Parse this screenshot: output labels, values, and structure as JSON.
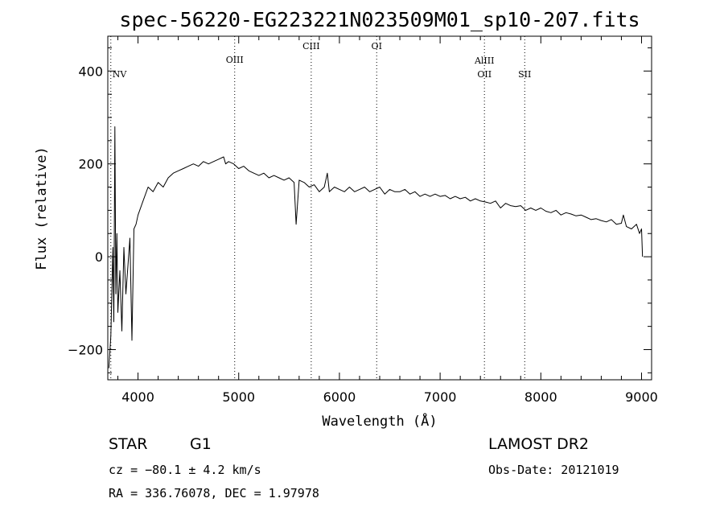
{
  "chart_data": {
    "type": "line",
    "title": "spec-56220-EG223221N023509M01_sp10-207.fits",
    "xlabel": "Wavelength (Å)",
    "ylabel": "Flux (relative)",
    "xlim": [
      3700,
      9100
    ],
    "ylim": [
      -265,
      475
    ],
    "xticks": [
      4000,
      5000,
      6000,
      7000,
      8000,
      9000
    ],
    "xtick_labels": [
      "4000",
      "5000",
      "6000",
      "7000",
      "8000",
      "9000"
    ],
    "yticks": [
      -200,
      0,
      200,
      400
    ],
    "ytick_labels": [
      "−200",
      "0",
      "200",
      "400"
    ],
    "grid": false,
    "line_markers": [
      {
        "label": "NV",
        "x": 3730
      },
      {
        "label": "OIII",
        "x": 4960
      },
      {
        "label": "CIII",
        "x": 5720
      },
      {
        "label": "OI",
        "x": 6370
      },
      {
        "label": "AlIII",
        "x": 7440
      },
      {
        "label": "OII",
        "x": 7440
      },
      {
        "label": "SII",
        "x": 7840
      }
    ],
    "series": [
      {
        "x": [
          3710,
          3730,
          3750,
          3760,
          3770,
          3780,
          3790,
          3800,
          3820,
          3840,
          3860,
          3880,
          3900,
          3920,
          3940,
          3960,
          3980,
          4000,
          4050,
          4100,
          4150,
          4200,
          4250,
          4300,
          4350,
          4400,
          4450,
          4500,
          4550,
          4600,
          4650,
          4700,
          4750,
          4800,
          4850,
          4870,
          4900,
          4950,
          5000,
          5050,
          5100,
          5150,
          5200,
          5250,
          5300,
          5350,
          5400,
          5450,
          5500,
          5550,
          5570,
          5600,
          5650,
          5700,
          5750,
          5800,
          5850,
          5880,
          5900,
          5950,
          6000,
          6050,
          6100,
          6150,
          6200,
          6250,
          6300,
          6350,
          6400,
          6450,
          6500,
          6550,
          6600,
          6650,
          6700,
          6750,
          6800,
          6850,
          6900,
          6950,
          7000,
          7050,
          7100,
          7150,
          7200,
          7250,
          7300,
          7350,
          7400,
          7450,
          7500,
          7550,
          7600,
          7650,
          7700,
          7750,
          7800,
          7850,
          7900,
          7950,
          8000,
          8050,
          8100,
          8150,
          8200,
          8250,
          8300,
          8350,
          8400,
          8450,
          8500,
          8550,
          8600,
          8650,
          8700,
          8750,
          8800,
          8820,
          8850,
          8900,
          8950,
          8980,
          9000,
          9010
        ],
        "y": [
          -240,
          -170,
          20,
          -140,
          280,
          -80,
          50,
          -120,
          -30,
          -160,
          20,
          -80,
          -20,
          40,
          -180,
          60,
          70,
          90,
          120,
          150,
          140,
          160,
          150,
          170,
          180,
          185,
          190,
          195,
          200,
          195,
          205,
          200,
          205,
          210,
          215,
          200,
          205,
          200,
          190,
          195,
          185,
          180,
          175,
          180,
          170,
          175,
          170,
          165,
          170,
          160,
          70,
          165,
          160,
          150,
          155,
          140,
          150,
          180,
          140,
          150,
          145,
          140,
          150,
          140,
          145,
          150,
          140,
          145,
          150,
          135,
          145,
          140,
          140,
          145,
          135,
          140,
          130,
          135,
          130,
          135,
          130,
          132,
          125,
          130,
          125,
          128,
          120,
          125,
          120,
          118,
          115,
          120,
          105,
          115,
          110,
          108,
          110,
          100,
          105,
          100,
          105,
          98,
          95,
          100,
          90,
          95,
          92,
          88,
          90,
          85,
          80,
          82,
          78,
          75,
          80,
          70,
          72,
          90,
          65,
          60,
          70,
          50,
          60,
          0
        ]
      }
    ]
  },
  "info": {
    "object_type": "STAR",
    "subclass": "G1",
    "survey": "LAMOST DR2",
    "cz": "cz = −80.1 ± 4.2 km/s",
    "obs_date": "Obs-Date: 20121019",
    "coords": "RA = 336.76078, DEC =   1.97978"
  }
}
